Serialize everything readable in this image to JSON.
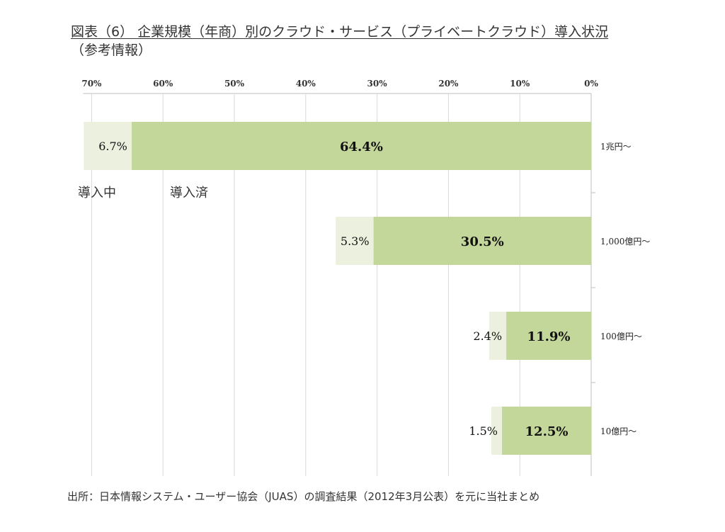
{
  "title": {
    "line1": "図表（6） 企業規模（年商）別のクラウド・サービス（プライベートクラウド）導入状況",
    "line2": "（参考情報）"
  },
  "source": "出所：日本情報システム・ユーザー協会（JUAS）の調査結果（2012年3月公表）を元に当社まとめ",
  "chart_data": {
    "type": "bar",
    "orientation": "horizontal-reversed",
    "stacked": true,
    "xlim": [
      0,
      70
    ],
    "x_ticks": [
      "70%",
      "60%",
      "50%",
      "40%",
      "30%",
      "20%",
      "10%",
      "0%"
    ],
    "x_tick_values": [
      70,
      60,
      50,
      40,
      30,
      20,
      10,
      0
    ],
    "categories": [
      "1兆円～",
      "1,000億円～",
      "100億円～",
      "10億円～"
    ],
    "series": [
      {
        "name": "導入済",
        "values": [
          64.4,
          30.5,
          11.9,
          12.5
        ],
        "labels": [
          "64.4%",
          "30.5%",
          "11.9%",
          "12.5%"
        ],
        "color": "#c4d79b"
      },
      {
        "name": "導入中",
        "values": [
          6.7,
          5.3,
          2.4,
          1.5
        ],
        "labels": [
          "6.7%",
          "5.3%",
          "2.4%",
          "1.5%"
        ],
        "color": "#ebf1de"
      }
    ],
    "legend_labels": [
      "導入中",
      "導入済"
    ],
    "grid": true
  }
}
